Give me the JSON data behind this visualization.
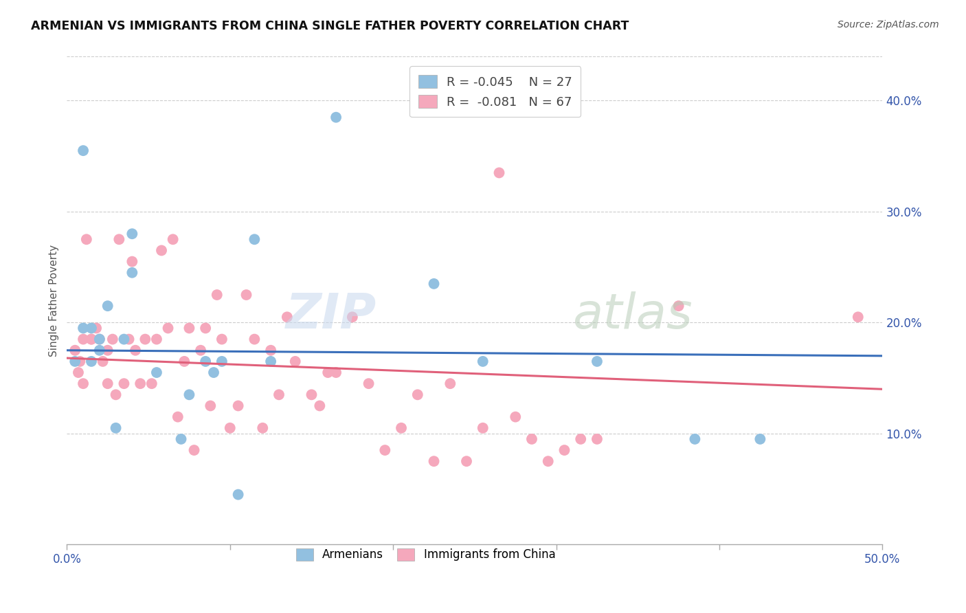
{
  "title": "ARMENIAN VS IMMIGRANTS FROM CHINA SINGLE FATHER POVERTY CORRELATION CHART",
  "source": "Source: ZipAtlas.com",
  "ylabel": "Single Father Poverty",
  "ytick_labels": [
    "10.0%",
    "20.0%",
    "30.0%",
    "40.0%"
  ],
  "ytick_values": [
    0.1,
    0.2,
    0.3,
    0.4
  ],
  "xlim": [
    0.0,
    0.5
  ],
  "ylim": [
    0.0,
    0.44
  ],
  "blue_color": "#92c0e0",
  "pink_color": "#f5a8bc",
  "blue_line_color": "#3a6fba",
  "pink_line_color": "#e0607a",
  "blue_r": "-0.045",
  "blue_n": "27",
  "pink_r": "-0.081",
  "pink_n": "67",
  "armenians_x": [
    0.005,
    0.01,
    0.01,
    0.015,
    0.015,
    0.02,
    0.02,
    0.025,
    0.03,
    0.035,
    0.04,
    0.04,
    0.055,
    0.07,
    0.075,
    0.085,
    0.09,
    0.095,
    0.105,
    0.115,
    0.125,
    0.165,
    0.225,
    0.255,
    0.325,
    0.385,
    0.425
  ],
  "armenians_y": [
    0.165,
    0.355,
    0.195,
    0.195,
    0.165,
    0.175,
    0.185,
    0.215,
    0.105,
    0.185,
    0.28,
    0.245,
    0.155,
    0.095,
    0.135,
    0.165,
    0.155,
    0.165,
    0.045,
    0.275,
    0.165,
    0.385,
    0.235,
    0.165,
    0.165,
    0.095,
    0.095
  ],
  "china_x": [
    0.005,
    0.007,
    0.008,
    0.01,
    0.01,
    0.012,
    0.015,
    0.015,
    0.018,
    0.02,
    0.022,
    0.025,
    0.025,
    0.028,
    0.03,
    0.032,
    0.035,
    0.038,
    0.04,
    0.042,
    0.045,
    0.048,
    0.052,
    0.055,
    0.058,
    0.062,
    0.065,
    0.068,
    0.072,
    0.075,
    0.078,
    0.082,
    0.085,
    0.088,
    0.092,
    0.095,
    0.1,
    0.105,
    0.11,
    0.115,
    0.12,
    0.125,
    0.13,
    0.135,
    0.14,
    0.15,
    0.155,
    0.16,
    0.165,
    0.175,
    0.185,
    0.195,
    0.205,
    0.215,
    0.225,
    0.235,
    0.245,
    0.255,
    0.265,
    0.275,
    0.285,
    0.295,
    0.305,
    0.315,
    0.325,
    0.375,
    0.485
  ],
  "china_y": [
    0.175,
    0.155,
    0.165,
    0.185,
    0.145,
    0.275,
    0.185,
    0.185,
    0.195,
    0.185,
    0.165,
    0.175,
    0.145,
    0.185,
    0.135,
    0.275,
    0.145,
    0.185,
    0.255,
    0.175,
    0.145,
    0.185,
    0.145,
    0.185,
    0.265,
    0.195,
    0.275,
    0.115,
    0.165,
    0.195,
    0.085,
    0.175,
    0.195,
    0.125,
    0.225,
    0.185,
    0.105,
    0.125,
    0.225,
    0.185,
    0.105,
    0.175,
    0.135,
    0.205,
    0.165,
    0.135,
    0.125,
    0.155,
    0.155,
    0.205,
    0.145,
    0.085,
    0.105,
    0.135,
    0.075,
    0.145,
    0.075,
    0.105,
    0.335,
    0.115,
    0.095,
    0.075,
    0.085,
    0.095,
    0.095,
    0.215,
    0.205
  ],
  "blue_line_x0": 0.0,
  "blue_line_y0": 0.175,
  "blue_line_x1": 0.5,
  "blue_line_y1": 0.17,
  "pink_line_x0": 0.0,
  "pink_line_y0": 0.168,
  "pink_line_x1": 0.5,
  "pink_line_y1": 0.14
}
